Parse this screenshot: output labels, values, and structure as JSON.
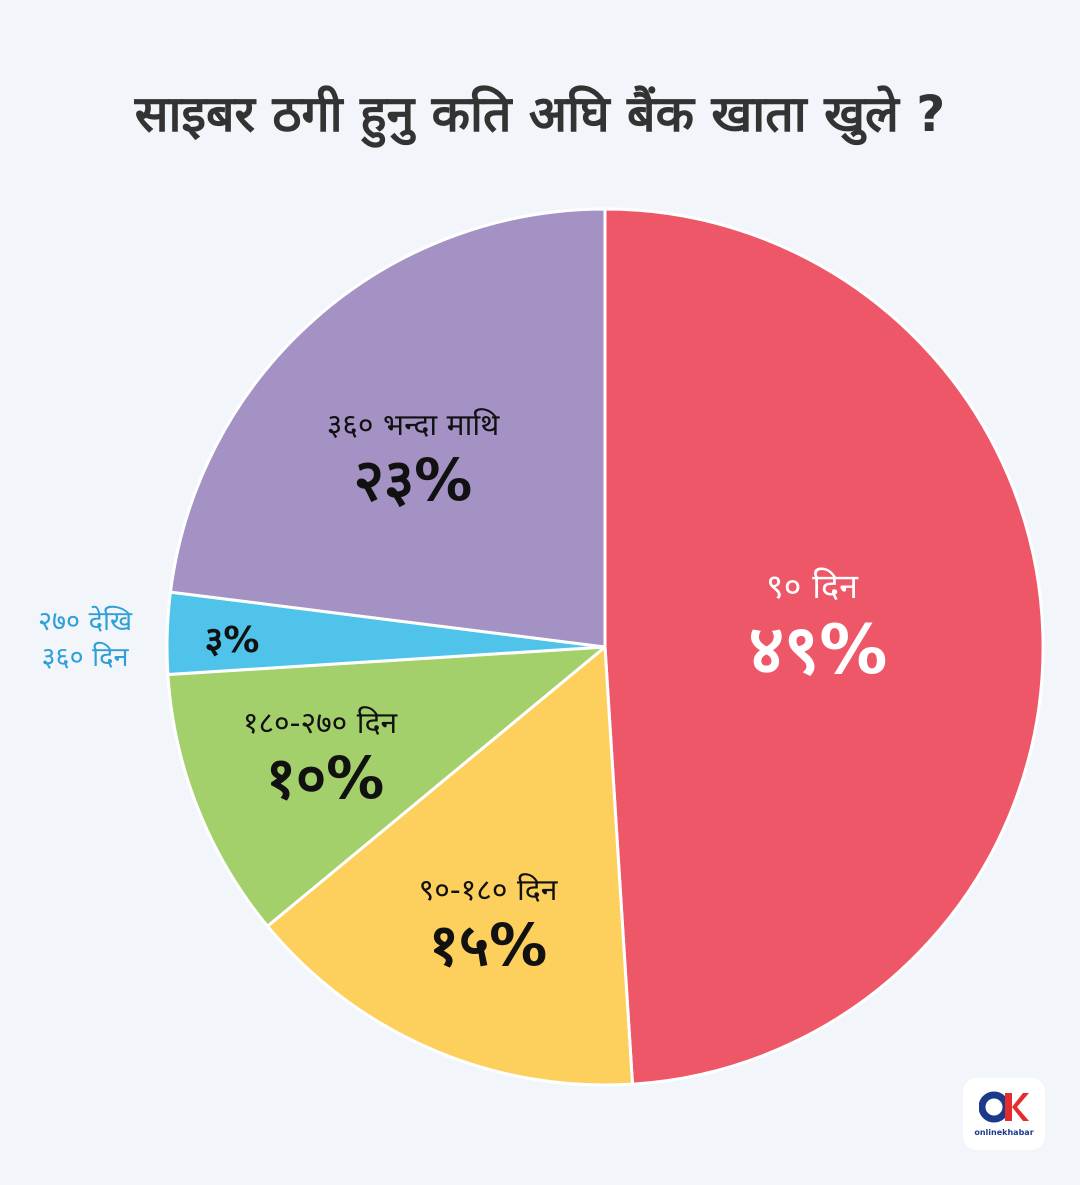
{
  "title": "साइबर ठगी हुनु कति अघि बैंक खाता खुले ?",
  "logo": {
    "brand_text": "onlinekhabar"
  },
  "chart_data": {
    "type": "pie",
    "title": "साइबर ठगी हुनु कति अघि बैंक खाता खुले ?",
    "start": "12 o'clock",
    "direction": "clockwise",
    "slices": [
      {
        "label": "९० दिन",
        "value": 49,
        "value_label": "४९%",
        "color": "#ee5767",
        "label_color": "#ffffff"
      },
      {
        "label": "९०-१८० दिन",
        "value": 15,
        "value_label": "१५%",
        "color": "#fdcf5c",
        "label_color": "#111111"
      },
      {
        "label": "१८०-२७० दिन",
        "value": 10,
        "value_label": "१०%",
        "color": "#a4d06b",
        "label_color": "#111111"
      },
      {
        "label": "२७० देखि ३६० दिन",
        "label_lines": [
          "२७० देखि",
          "३६० दिन"
        ],
        "value": 3,
        "value_label": "३%",
        "color": "#4fc3ea",
        "label_color": "#2f9fd8"
      },
      {
        "label": "३६० भन्दा माथि",
        "value": 23,
        "value_label": "२३%",
        "color": "#a592c5",
        "label_color": "#111111"
      }
    ]
  }
}
